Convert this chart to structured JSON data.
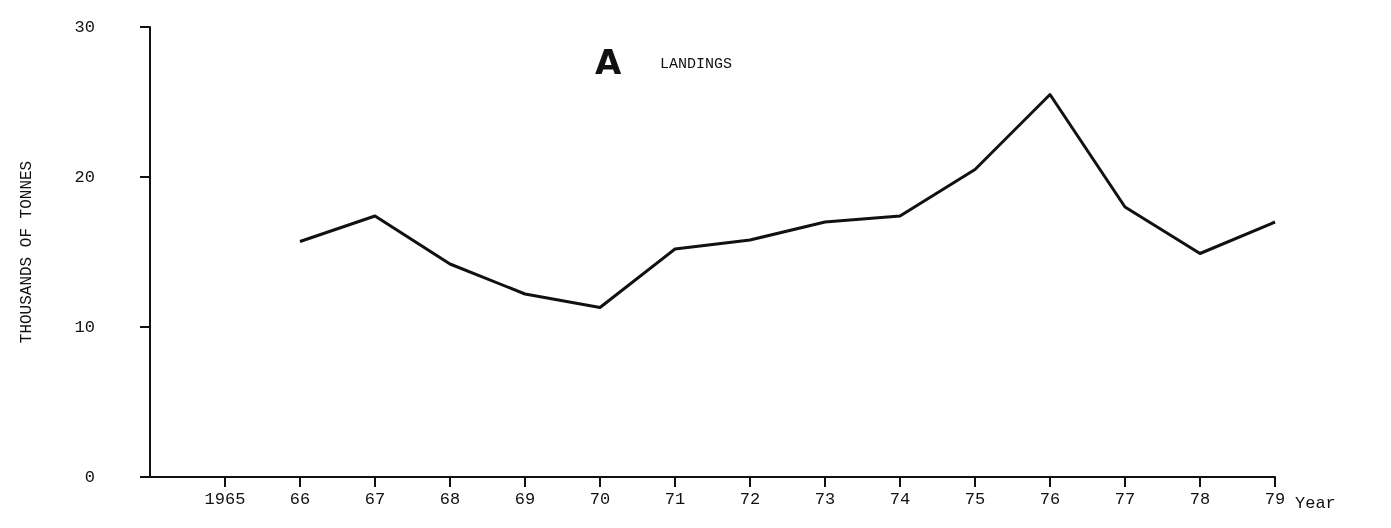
{
  "chart_data": {
    "type": "line",
    "title": "A",
    "subtitle": "LANDINGS",
    "xlabel": "Year",
    "ylabel": "THOUSANDS OF TONNES",
    "x": [
      1966,
      1967,
      1968,
      1969,
      1970,
      1971,
      1972,
      1973,
      1974,
      1975,
      1976,
      1977,
      1978,
      1979
    ],
    "series": [
      {
        "color": "#111111",
        "values": [
          15.7,
          17.4,
          14.2,
          12.2,
          11.3,
          15.2,
          15.8,
          17.0,
          17.4,
          20.5,
          25.5,
          18.0,
          14.9,
          17.0
        ]
      }
    ],
    "xlim": [
      1964,
      1979
    ],
    "xticks": [
      1965,
      {
        "value": 1966,
        "label": "66"
      },
      {
        "value": 1967,
        "label": "67"
      },
      {
        "value": 1968,
        "label": "68"
      },
      {
        "value": 1969,
        "label": "69"
      },
      {
        "value": 1970,
        "label": "70"
      },
      {
        "value": 1971,
        "label": "71"
      },
      {
        "value": 1972,
        "label": "72"
      },
      {
        "value": 1973,
        "label": "73"
      },
      {
        "value": 1974,
        "label": "74"
      },
      {
        "value": 1975,
        "label": "75"
      },
      {
        "value": 1976,
        "label": "76"
      },
      {
        "value": 1977,
        "label": "77"
      },
      {
        "value": 1978,
        "label": "78"
      },
      {
        "value": 1979,
        "label": "79"
      }
    ],
    "ylim": [
      0,
      30
    ],
    "yticks": [
      0,
      10,
      20,
      30
    ],
    "grid": false,
    "marker": "none",
    "line_style": "solid"
  }
}
